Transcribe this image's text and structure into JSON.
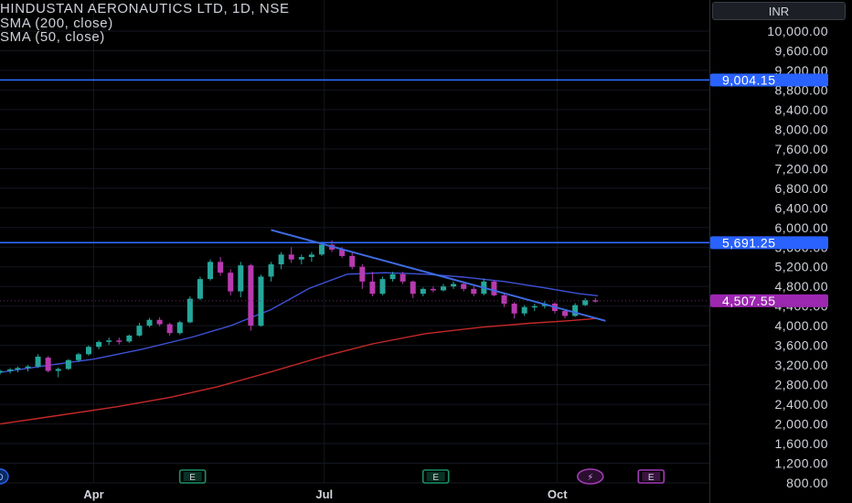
{
  "header": {
    "symbol_line": "HINDUSTAN AERONAUTICS LTD, 1D, NSE",
    "indicators": [
      "SMA (200, close)",
      "SMA (50, close)"
    ]
  },
  "currency": "INR",
  "colors": {
    "background": "#000000",
    "bull": "#26a69a",
    "bear": "#b83ab0",
    "sma200": "#c62828",
    "sma50": "#3f51d8",
    "hline": "#2f6bff",
    "trendline": "#3f6be0",
    "price_label": "#9c27b0",
    "hline_label": "#2962ff",
    "earnings_badge": "#1a8f6b",
    "earnings_badge_latest": "#a43ab6"
  },
  "chart_data": {
    "type": "candlestick",
    "symbol": "HINDUSTAN AERONAUTICS LTD",
    "interval": "1D",
    "exchange": "NSE",
    "y_axis": {
      "ticks": [
        "10,000.00",
        "9,600.00",
        "9,200.00",
        "8,800.00",
        "8,400.00",
        "8,000.00",
        "7,600.00",
        "7,200.00",
        "6,800.00",
        "6,400.00",
        "6,000.00",
        "5,600.00",
        "5,200.00",
        "4,800.00",
        "4,400.00",
        "4,000.00",
        "3,600.00",
        "3,200.00",
        "2,800.00",
        "2,400.00",
        "2,000.00",
        "1,600.00",
        "1,200.00",
        "800.00"
      ],
      "range": [
        700,
        10200
      ]
    },
    "x_axis": {
      "ticks": [
        "Apr",
        "Jul",
        "Oct"
      ],
      "range": [
        "2024-02-24",
        "2024-11-30"
      ]
    },
    "horizontal_lines": [
      {
        "price": 9004.15,
        "label": "9,004.15"
      },
      {
        "price": 5691.25,
        "label": "5,691.25"
      }
    ],
    "last_price": {
      "price": 4507.55,
      "label": "4,507.55"
    },
    "trendline": {
      "start": {
        "x": "2024-06-10",
        "y": 5950
      },
      "end": {
        "x": "2024-10-20",
        "y": 4100
      }
    },
    "sma200": {
      "name": "SMA (200, close)",
      "points": [
        [
          "2024-02-24",
          2000
        ],
        [
          "2024-03-15",
          2150
        ],
        [
          "2024-04-10",
          2350
        ],
        [
          "2024-05-01",
          2540
        ],
        [
          "2024-05-20",
          2760
        ],
        [
          "2024-06-10",
          3060
        ],
        [
          "2024-07-01",
          3380
        ],
        [
          "2024-07-20",
          3630
        ],
        [
          "2024-08-10",
          3840
        ],
        [
          "2024-09-01",
          3970
        ],
        [
          "2024-09-20",
          4050
        ],
        [
          "2024-10-05",
          4100
        ],
        [
          "2024-10-17",
          4150
        ]
      ]
    },
    "sma50": {
      "name": "SMA (50, close)",
      "points": [
        [
          "2024-02-24",
          3050
        ],
        [
          "2024-03-15",
          3200
        ],
        [
          "2024-04-01",
          3320
        ],
        [
          "2024-04-20",
          3520
        ],
        [
          "2024-05-10",
          3770
        ],
        [
          "2024-05-25",
          4000
        ],
        [
          "2024-06-10",
          4330
        ],
        [
          "2024-06-25",
          4760
        ],
        [
          "2024-07-10",
          5050
        ],
        [
          "2024-07-25",
          5080
        ],
        [
          "2024-08-10",
          5050
        ],
        [
          "2024-08-25",
          4990
        ],
        [
          "2024-09-10",
          4900
        ],
        [
          "2024-09-25",
          4780
        ],
        [
          "2024-10-10",
          4650
        ],
        [
          "2024-10-17",
          4610
        ]
      ]
    },
    "candles": [
      {
        "d": "2024-02-24",
        "o": 3050,
        "h": 3110,
        "l": 3000,
        "c": 3080
      },
      {
        "d": "2024-02-28",
        "o": 3080,
        "h": 3140,
        "l": 3030,
        "c": 3110
      },
      {
        "d": "2024-03-02",
        "o": 3110,
        "h": 3170,
        "l": 3050,
        "c": 3140
      },
      {
        "d": "2024-03-06",
        "o": 3140,
        "h": 3200,
        "l": 3070,
        "c": 3170
      },
      {
        "d": "2024-03-10",
        "o": 3170,
        "h": 3420,
        "l": 3140,
        "c": 3370
      },
      {
        "d": "2024-03-14",
        "o": 3350,
        "h": 3380,
        "l": 3050,
        "c": 3080
      },
      {
        "d": "2024-03-18",
        "o": 3080,
        "h": 3150,
        "l": 2950,
        "c": 3120
      },
      {
        "d": "2024-03-22",
        "o": 3120,
        "h": 3320,
        "l": 3100,
        "c": 3300
      },
      {
        "d": "2024-03-26",
        "o": 3300,
        "h": 3450,
        "l": 3260,
        "c": 3420
      },
      {
        "d": "2024-03-30",
        "o": 3420,
        "h": 3600,
        "l": 3390,
        "c": 3570
      },
      {
        "d": "2024-04-03",
        "o": 3570,
        "h": 3700,
        "l": 3520,
        "c": 3670
      },
      {
        "d": "2024-04-07",
        "o": 3670,
        "h": 3760,
        "l": 3610,
        "c": 3700
      },
      {
        "d": "2024-04-11",
        "o": 3700,
        "h": 3760,
        "l": 3620,
        "c": 3680
      },
      {
        "d": "2024-04-15",
        "o": 3680,
        "h": 3820,
        "l": 3650,
        "c": 3800
      },
      {
        "d": "2024-04-19",
        "o": 3800,
        "h": 4060,
        "l": 3780,
        "c": 4000
      },
      {
        "d": "2024-04-23",
        "o": 4000,
        "h": 4160,
        "l": 3970,
        "c": 4120
      },
      {
        "d": "2024-04-27",
        "o": 4120,
        "h": 4170,
        "l": 3990,
        "c": 4030
      },
      {
        "d": "2024-05-01",
        "o": 4030,
        "h": 4060,
        "l": 3800,
        "c": 3850
      },
      {
        "d": "2024-05-05",
        "o": 3850,
        "h": 4100,
        "l": 3820,
        "c": 4070
      },
      {
        "d": "2024-05-09",
        "o": 4070,
        "h": 4600,
        "l": 4050,
        "c": 4550
      },
      {
        "d": "2024-05-13",
        "o": 4550,
        "h": 5000,
        "l": 4520,
        "c": 4950
      },
      {
        "d": "2024-05-17",
        "o": 4950,
        "h": 5350,
        "l": 4920,
        "c": 5300
      },
      {
        "d": "2024-05-21",
        "o": 5300,
        "h": 5400,
        "l": 5020,
        "c": 5080
      },
      {
        "d": "2024-05-25",
        "o": 5080,
        "h": 5150,
        "l": 4620,
        "c": 4700
      },
      {
        "d": "2024-05-29",
        "o": 4700,
        "h": 5300,
        "l": 4580,
        "c": 5230
      },
      {
        "d": "2024-06-02",
        "o": 5230,
        "h": 5260,
        "l": 3900,
        "c": 4000
      },
      {
        "d": "2024-06-06",
        "o": 4000,
        "h": 5040,
        "l": 3980,
        "c": 5000
      },
      {
        "d": "2024-06-10",
        "o": 5000,
        "h": 5300,
        "l": 4900,
        "c": 5250
      },
      {
        "d": "2024-06-14",
        "o": 5250,
        "h": 5500,
        "l": 5150,
        "c": 5450
      },
      {
        "d": "2024-06-18",
        "o": 5450,
        "h": 5600,
        "l": 5280,
        "c": 5350
      },
      {
        "d": "2024-06-22",
        "o": 5350,
        "h": 5450,
        "l": 5250,
        "c": 5400
      },
      {
        "d": "2024-06-26",
        "o": 5400,
        "h": 5500,
        "l": 5300,
        "c": 5450
      },
      {
        "d": "2024-06-30",
        "o": 5450,
        "h": 5700,
        "l": 5420,
        "c": 5650
      },
      {
        "d": "2024-07-04",
        "o": 5650,
        "h": 5740,
        "l": 5500,
        "c": 5550
      },
      {
        "d": "2024-07-08",
        "o": 5550,
        "h": 5600,
        "l": 5380,
        "c": 5420
      },
      {
        "d": "2024-07-12",
        "o": 5420,
        "h": 5500,
        "l": 5150,
        "c": 5200
      },
      {
        "d": "2024-07-16",
        "o": 5200,
        "h": 5250,
        "l": 4750,
        "c": 4900
      },
      {
        "d": "2024-07-20",
        "o": 4900,
        "h": 5100,
        "l": 4600,
        "c": 4650
      },
      {
        "d": "2024-07-24",
        "o": 4650,
        "h": 5000,
        "l": 4620,
        "c": 4950
      },
      {
        "d": "2024-07-28",
        "o": 4950,
        "h": 5100,
        "l": 4900,
        "c": 5050
      },
      {
        "d": "2024-08-01",
        "o": 5050,
        "h": 5100,
        "l": 4850,
        "c": 4900
      },
      {
        "d": "2024-08-05",
        "o": 4900,
        "h": 4920,
        "l": 4560,
        "c": 4650
      },
      {
        "d": "2024-08-09",
        "o": 4650,
        "h": 4780,
        "l": 4600,
        "c": 4750
      },
      {
        "d": "2024-08-13",
        "o": 4750,
        "h": 4800,
        "l": 4680,
        "c": 4720
      },
      {
        "d": "2024-08-17",
        "o": 4720,
        "h": 4850,
        "l": 4700,
        "c": 4800
      },
      {
        "d": "2024-08-21",
        "o": 4800,
        "h": 4900,
        "l": 4750,
        "c": 4850
      },
      {
        "d": "2024-08-25",
        "o": 4850,
        "h": 4900,
        "l": 4700,
        "c": 4750
      },
      {
        "d": "2024-08-29",
        "o": 4750,
        "h": 4800,
        "l": 4600,
        "c": 4650
      },
      {
        "d": "2024-09-02",
        "o": 4650,
        "h": 4960,
        "l": 4620,
        "c": 4900
      },
      {
        "d": "2024-09-06",
        "o": 4900,
        "h": 4920,
        "l": 4600,
        "c": 4620
      },
      {
        "d": "2024-09-10",
        "o": 4620,
        "h": 4660,
        "l": 4380,
        "c": 4450
      },
      {
        "d": "2024-09-14",
        "o": 4450,
        "h": 4480,
        "l": 4150,
        "c": 4250
      },
      {
        "d": "2024-09-18",
        "o": 4250,
        "h": 4420,
        "l": 4200,
        "c": 4380
      },
      {
        "d": "2024-09-22",
        "o": 4380,
        "h": 4450,
        "l": 4300,
        "c": 4400
      },
      {
        "d": "2024-09-26",
        "o": 4400,
        "h": 4500,
        "l": 4350,
        "c": 4450
      },
      {
        "d": "2024-09-30",
        "o": 4450,
        "h": 4480,
        "l": 4250,
        "c": 4300
      },
      {
        "d": "2024-10-04",
        "o": 4300,
        "h": 4320,
        "l": 4150,
        "c": 4200
      },
      {
        "d": "2024-10-08",
        "o": 4200,
        "h": 4460,
        "l": 4180,
        "c": 4420
      },
      {
        "d": "2024-10-12",
        "o": 4420,
        "h": 4560,
        "l": 4400,
        "c": 4520
      },
      {
        "d": "2024-10-16",
        "o": 4520,
        "h": 4570,
        "l": 4470,
        "c": 4507.55
      }
    ]
  },
  "event_markers": [
    {
      "type": "dividend",
      "label": "D",
      "date": "2024-02-24"
    },
    {
      "type": "earnings",
      "label": "E",
      "date": "2024-05-10"
    },
    {
      "type": "earnings",
      "label": "E",
      "date": "2024-08-14"
    },
    {
      "type": "split",
      "label": "⚡",
      "date": "2024-10-14"
    },
    {
      "type": "earnings",
      "label": "E",
      "date": "2024-11-07",
      "future": true
    }
  ]
}
